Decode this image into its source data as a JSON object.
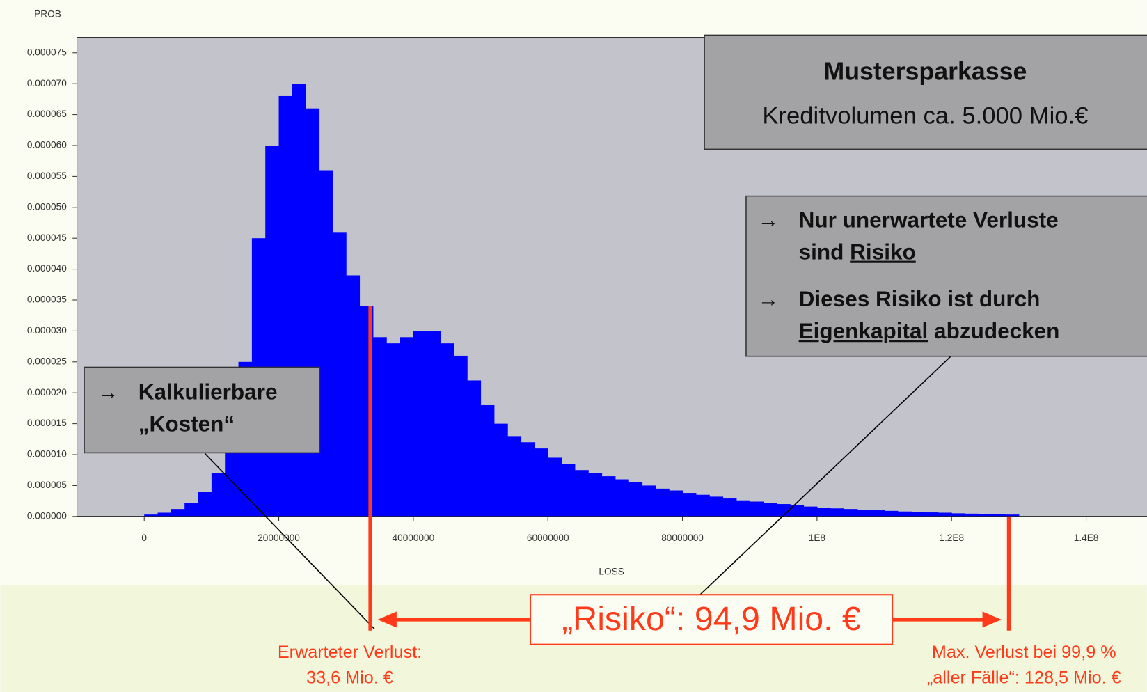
{
  "chart_data": {
    "type": "histogram",
    "ylabel": "PROB",
    "xlabel": "LOSS",
    "color": "#0000ff",
    "marker_color": "#ff3a1a",
    "xlim": [
      -10000000,
      150000000
    ],
    "ylim": [
      0,
      7.75e-05
    ],
    "xticks": [
      0,
      20000000,
      40000000,
      60000000,
      80000000,
      {
        "value": 100000000,
        "label": "1E8"
      },
      {
        "value": 120000000,
        "label": "1.2E8"
      },
      {
        "value": 140000000,
        "label": "1.4E8"
      }
    ],
    "yticks": [
      {
        "value": 0,
        "label": "0.000000"
      },
      {
        "value": 5e-06,
        "label": "0.000005"
      },
      {
        "value": 1e-05,
        "label": "0.000010"
      },
      {
        "value": 1.5e-05,
        "label": "0.000015"
      },
      {
        "value": 2e-05,
        "label": "0.000020"
      },
      {
        "value": 2.5e-05,
        "label": "0.000025"
      },
      {
        "value": 3e-05,
        "label": "0.000030"
      },
      {
        "value": 3.5e-05,
        "label": "0.000035"
      },
      {
        "value": 4e-05,
        "label": "0.000040"
      },
      {
        "value": 4.5e-05,
        "label": "0.000045"
      },
      {
        "value": 5e-05,
        "label": "0.000050"
      },
      {
        "value": 5.5e-05,
        "label": "0.000055"
      },
      {
        "value": 6e-05,
        "label": "0.000060"
      },
      {
        "value": 6.5e-05,
        "label": "0.000065"
      },
      {
        "value": 7e-05,
        "label": "0.000070"
      },
      {
        "value": 7.5e-05,
        "label": "0.000075"
      }
    ],
    "bins": [
      0,
      2000000,
      4000000,
      6000000,
      8000000,
      10000000,
      12000000,
      14000000,
      16000000,
      18000000,
      20000000,
      22000000,
      24000000,
      26000000,
      28000000,
      30000000,
      32000000,
      34000000,
      36000000,
      38000000,
      40000000,
      42000000,
      44000000,
      46000000,
      48000000,
      50000000,
      52000000,
      54000000,
      56000000,
      58000000,
      60000000,
      62000000,
      64000000,
      66000000,
      68000000,
      70000000,
      72000000,
      74000000,
      76000000,
      78000000,
      80000000,
      82000000,
      84000000,
      86000000,
      88000000,
      90000000,
      92000000,
      94000000,
      96000000,
      98000000,
      100000000,
      102000000,
      104000000,
      106000000,
      108000000,
      110000000,
      112000000,
      114000000,
      116000000,
      118000000,
      120000000,
      122000000,
      124000000,
      126000000,
      128000000,
      130000000
    ],
    "counts": [
      3e-07,
      6e-07,
      1.2e-06,
      2.2e-06,
      4e-06,
      7e-06,
      1.3e-05,
      2.5e-05,
      4.5e-05,
      6e-05,
      6.8e-05,
      7e-05,
      6.6e-05,
      5.6e-05,
      4.6e-05,
      3.9e-05,
      3.4e-05,
      2.9e-05,
      2.8e-05,
      2.9e-05,
      3e-05,
      3e-05,
      2.8e-05,
      2.6e-05,
      2.2e-05,
      1.8e-05,
      1.5e-05,
      1.3e-05,
      1.2e-05,
      1.1e-05,
      9.5e-06,
      8.5e-06,
      7.5e-06,
      7e-06,
      6.5e-06,
      6e-06,
      5.5e-06,
      5e-06,
      4.5e-06,
      4.2e-06,
      3.8e-06,
      3.5e-06,
      3.2e-06,
      2.9e-06,
      2.6e-06,
      2.4e-06,
      2.2e-06,
      2e-06,
      1.8e-06,
      1.6e-06,
      1.4e-06,
      1.3e-06,
      1.2e-06,
      1.1e-06,
      1e-06,
      9e-07,
      8e-07,
      7e-07,
      6.5e-07,
      6e-07,
      5e-07,
      4.5e-07,
      4e-07,
      3.5e-07,
      3e-07
    ],
    "info_box": {
      "title": "Mustersparkasse",
      "subtitle": "Kreditvolumen ca. 5.000 Mio.€"
    },
    "risk_note": {
      "bullets": [
        {
          "marker": "→",
          "lines": [
            [
              "Nur unerwartete Verluste"
            ],
            [
              "sind ",
              {
                "text": "Risiko",
                "underline": true
              }
            ]
          ]
        },
        {
          "marker": "→",
          "lines": [
            [
              "Dieses Risiko ist durch"
            ],
            [
              {
                "text": "Eigenkapital",
                "underline": true
              },
              " abzudecken"
            ]
          ]
        }
      ]
    },
    "cost_note": {
      "bullets": [
        {
          "marker": "→",
          "lines": [
            [
              "Kalkulierbare"
            ],
            [
              "„Kosten“"
            ]
          ]
        }
      ]
    },
    "expected_loss": {
      "value": 33600000,
      "label_lines": [
        "Erwarteter Verlust:",
        "33,6 Mio. €"
      ]
    },
    "max_loss": {
      "value": 128500000,
      "label_lines": [
        "Max. Verlust bei 99,9 %",
        "„aller Fälle“: 128,5 Mio. €"
      ]
    },
    "risk_label": "„Risiko“: 94,9 Mio. €"
  }
}
